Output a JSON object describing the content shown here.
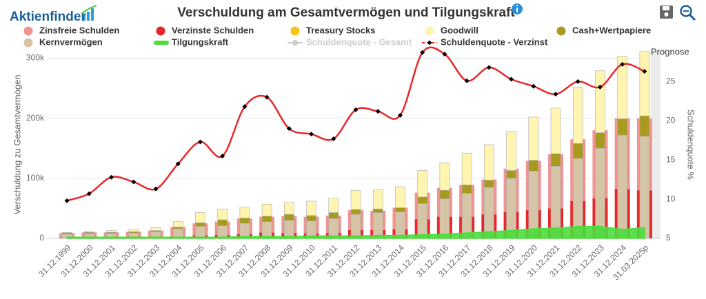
{
  "logo": "Aktienfinder",
  "chart_data": {
    "type": "combo",
    "title": "Verschuldung am Gesamtvermögen und Tilgungskraft",
    "y_label": "Verschuldung zu Gesamtvermögen",
    "y2_label": "Schuldenquote %",
    "annotations": [
      "Prognose"
    ],
    "categories": [
      "31.12.1999",
      "31.12.2000",
      "31.12.2001",
      "31.12.2002",
      "31.12.2003",
      "31.12.2004",
      "31.12.2005",
      "31.12.2006",
      "31.12.2007",
      "31.12.2008",
      "31.12.2009",
      "31.12.2010",
      "31.12.2011",
      "31.12.2012",
      "31.12.2013",
      "31.12.2014",
      "31.12.2015",
      "31.12.2016",
      "31.12.2017",
      "31.12.2018",
      "31.12.2019",
      "31.12.2020",
      "31.12.2021",
      "31.12.2022",
      "31.12.2023",
      "31.12.2024",
      "31.03.2025p"
    ],
    "ylim": [
      0,
      312000
    ],
    "yticks": [
      {
        "value": 0,
        "label": "0"
      },
      {
        "value": 100000,
        "label": "100k"
      },
      {
        "value": 200000,
        "label": "200k"
      },
      {
        "value": 300000,
        "label": "300k"
      }
    ],
    "y2lim": [
      5,
      28.9
    ],
    "y2ticks": [
      5,
      10,
      15,
      20,
      25
    ],
    "grid": true,
    "series": [
      {
        "name": "Zinsfreie Schulden",
        "kind": "bar",
        "stack": "debt",
        "stack_index": 1,
        "color": "#f29393",
        "values": [
          8000,
          9000,
          9000,
          10000,
          12000,
          17000,
          20000,
          22000,
          26000,
          26000,
          28000,
          28000,
          29000,
          33000,
          32000,
          36000,
          44000,
          48000,
          53000,
          58000,
          72000,
          82000,
          90000,
          103000,
          113000,
          118000,
          120000
        ]
      },
      {
        "name": "Verzinste Schulden",
        "kind": "bar",
        "stack": "debt",
        "stack_index": 0,
        "color": "#e8262a",
        "values": [
          1000,
          1000,
          1000,
          1000,
          1000,
          2000,
          5000,
          6000,
          7000,
          10000,
          9000,
          8000,
          9000,
          14000,
          14000,
          15000,
          32000,
          36000,
          36000,
          40000,
          44000,
          47000,
          50000,
          62000,
          67000,
          82000,
          80000
        ]
      },
      {
        "name": "Treasury Stocks",
        "kind": "bar",
        "stack": "assets",
        "stack_index": 2,
        "color": "#f5c518",
        "values": [
          0,
          0,
          0,
          0,
          0,
          0,
          0,
          0,
          0,
          0,
          0,
          0,
          0,
          0,
          0,
          0,
          0,
          0,
          0,
          0,
          0,
          0,
          0,
          0,
          0,
          0,
          0
        ]
      },
      {
        "name": "Goodwill",
        "kind": "bar",
        "stack": "assets",
        "stack_index": 3,
        "color": "#fff5b0",
        "values": [
          1000,
          2000,
          3000,
          4000,
          5000,
          9000,
          17000,
          18000,
          18000,
          20000,
          20000,
          24000,
          24000,
          32000,
          32000,
          35000,
          44000,
          46000,
          53000,
          59000,
          65000,
          72000,
          76000,
          94000,
          103000,
          104000,
          107000
        ]
      },
      {
        "name": "Cash+Wertpapiere",
        "kind": "bar",
        "stack": "assets",
        "stack_index": 1,
        "color": "#a89a1e",
        "values": [
          2000,
          2000,
          2000,
          2000,
          2000,
          3000,
          6000,
          10000,
          9000,
          9000,
          10000,
          9000,
          10000,
          8000,
          6000,
          7000,
          11000,
          14000,
          14000,
          12000,
          13000,
          18000,
          21000,
          25000,
          26000,
          27000,
          34000
        ]
      },
      {
        "name": "Kernvermögen",
        "kind": "bar",
        "stack": "assets",
        "stack_index": 0,
        "color": "#d5c4a5",
        "values": [
          7000,
          8000,
          8000,
          9000,
          11000,
          16000,
          20000,
          21000,
          25000,
          28000,
          30000,
          29000,
          33000,
          40000,
          43000,
          44000,
          58000,
          66000,
          75000,
          85000,
          100000,
          112000,
          120000,
          133000,
          150000,
          172000,
          170000
        ]
      },
      {
        "name": "Tilgungskraft",
        "kind": "area",
        "color": "#4cdc3c",
        "values": [
          2000,
          2000,
          2000,
          2000,
          2000,
          2000,
          2000,
          2000,
          3000,
          3000,
          3000,
          4000,
          4000,
          4000,
          5000,
          5000,
          6000,
          7000,
          9000,
          11000,
          13000,
          16000,
          17000,
          20000,
          20000,
          15000,
          18000
        ]
      },
      {
        "name": "Schuldenquote - Gesamt",
        "kind": "line",
        "axis": "y2",
        "visible": false,
        "color": "#cccccc"
      },
      {
        "name": "Schuldenquote - Verzinst",
        "kind": "line",
        "axis": "y2",
        "color": "#e8262a",
        "values": [
          9.8,
          10.7,
          12.8,
          12.2,
          11.3,
          14.5,
          17.3,
          15.5,
          21.8,
          23,
          19,
          18.3,
          17.7,
          21.4,
          21.2,
          20.7,
          28.7,
          28.5,
          25.1,
          26.8,
          25.3,
          24.4,
          23.4,
          25,
          24.3,
          27.2,
          26.3
        ]
      }
    ]
  }
}
